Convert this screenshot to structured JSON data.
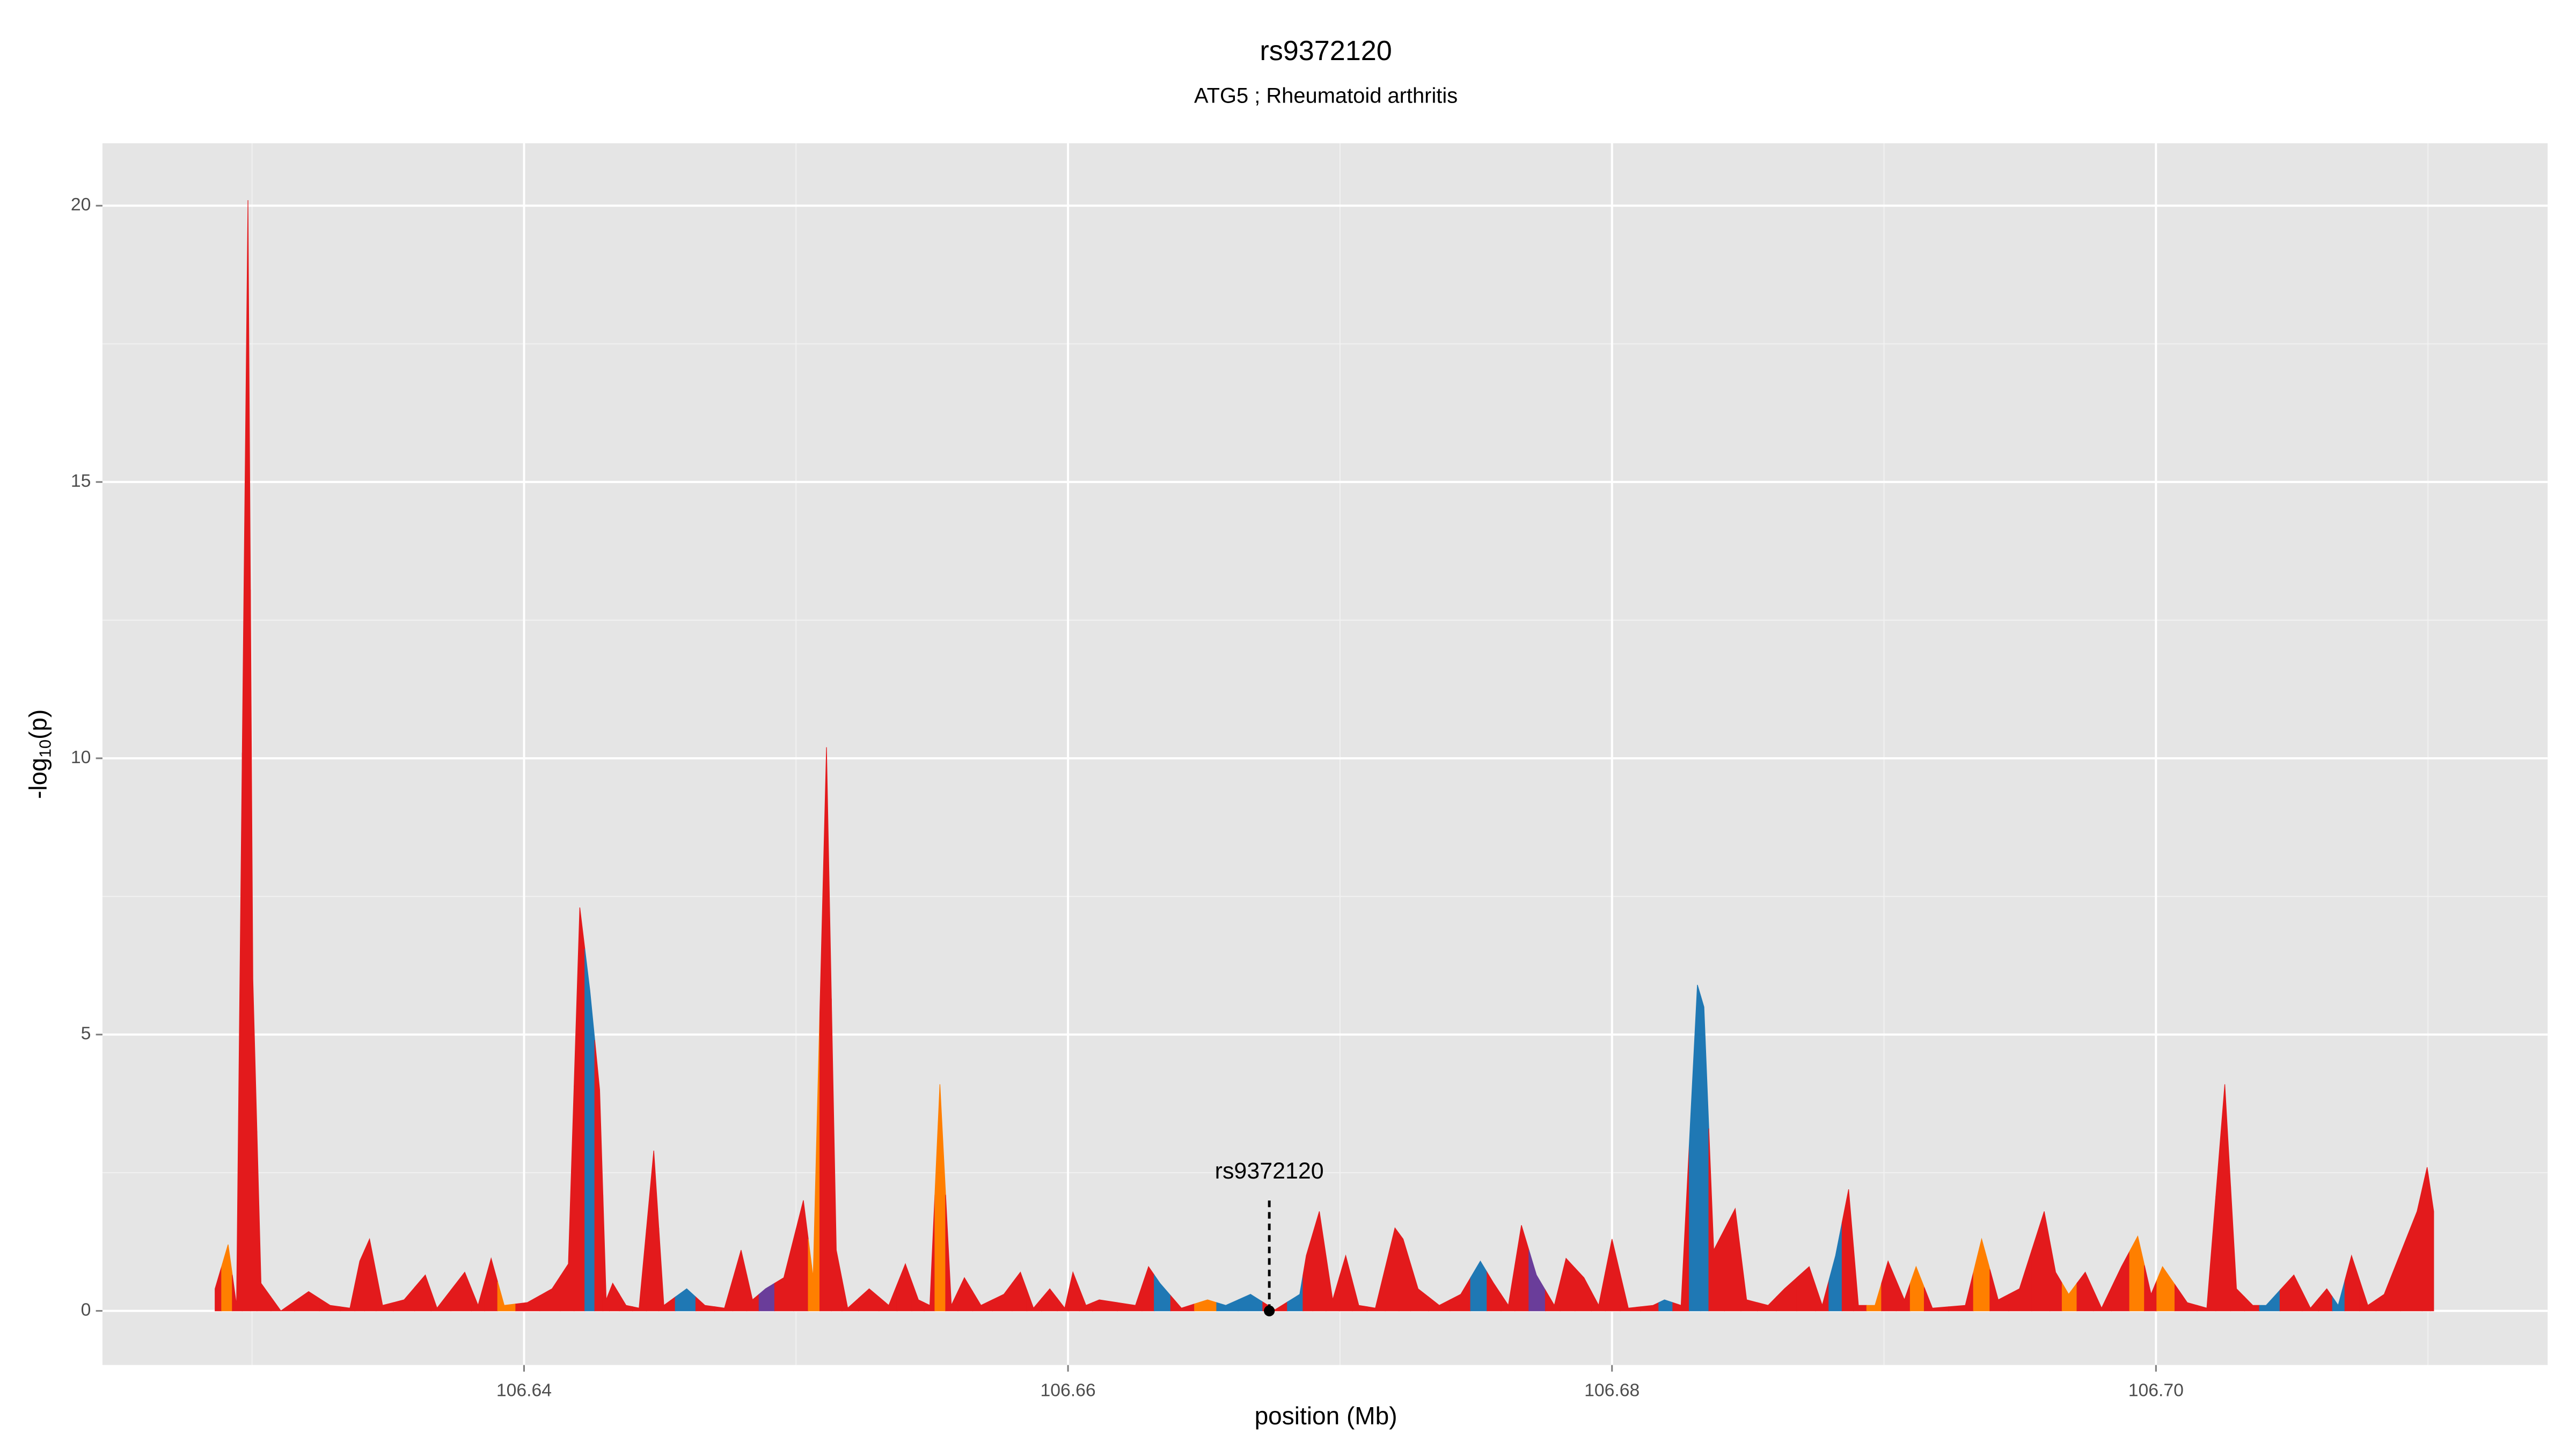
{
  "chart_data": {
    "type": "area",
    "title": "rs9372120",
    "subtitle": "ATG5 ; Rheumatoid arthritis",
    "xlabel": "position (Mb)",
    "ylabel": {
      "text": "-log",
      "subscript": "10",
      "suffix": "(p)"
    },
    "xlim": [
      106.6245,
      106.7144
    ],
    "ylim": [
      -0.98,
      21.13
    ],
    "xticks": [
      106.64,
      106.66,
      106.68,
      {
        "value": 106.7,
        "label": "106.70"
      }
    ],
    "yticks": [
      0,
      5,
      10,
      15,
      20
    ],
    "grid": true,
    "annotation": {
      "label": "rs9372120",
      "x": 106.6674,
      "y": 0
    },
    "x": [
      106.62864,
      106.62912,
      106.62943,
      106.62985,
      106.63003,
      106.63033,
      106.63106,
      106.63208,
      106.63287,
      106.6336,
      106.63396,
      106.63432,
      106.6348,
      106.63559,
      106.63637,
      106.6368,
      106.63782,
      106.63831,
      106.63879,
      106.63927,
      106.64012,
      106.64103,
      106.64163,
      106.64205,
      106.64242,
      106.64278,
      106.64302,
      106.64326,
      106.64375,
      106.64423,
      106.64477,
      106.64514,
      106.64598,
      106.64665,
      106.64737,
      106.64798,
      106.6484,
      106.64888,
      106.64955,
      106.65027,
      106.65063,
      106.65112,
      106.65148,
      106.6519,
      106.65269,
      106.65341,
      106.65402,
      106.6545,
      106.65492,
      106.65529,
      106.65571,
      106.65619,
      106.6568,
      106.65764,
      106.65825,
      106.65873,
      106.65933,
      106.65988,
      106.66018,
      106.66066,
      106.66115,
      106.66248,
      106.66296,
      106.66338,
      106.66417,
      106.66513,
      106.6658,
      106.66671,
      106.66761,
      106.66852,
      106.66876,
      106.66924,
      106.66973,
      106.67021,
      106.67069,
      106.6713,
      106.67202,
      106.67232,
      106.67287,
      106.67365,
      106.67444,
      106.67516,
      106.67565,
      106.67619,
      106.67667,
      106.67722,
      106.67788,
      106.67831,
      106.67897,
      106.67951,
      106.68,
      106.6806,
      106.68151,
      106.68193,
      106.68254,
      106.68314,
      106.68338,
      106.68374,
      106.68453,
      106.68495,
      106.68574,
      106.68634,
      106.68725,
      106.68773,
      106.68822,
      106.6887,
      106.68906,
      106.68967,
      106.69015,
      106.69075,
      106.69118,
      106.69178,
      106.69299,
      106.69359,
      106.6942,
      106.69498,
      106.69589,
      106.69631,
      106.69679,
      106.6974,
      106.698,
      106.69873,
      106.69933,
      106.69982,
      106.70024,
      106.70115,
      106.70187,
      106.70253,
      106.70296,
      106.70356,
      106.70405,
      106.70507,
      106.70568,
      106.70628,
      106.7067,
      106.70719,
      106.70779,
      106.70839,
      106.7096,
      106.70997,
      106.71021
    ],
    "values": [
      0.4,
      1.2,
      0.1,
      20.1,
      6,
      0.5,
      0,
      0.35,
      0.1,
      0.05,
      0.9,
      1.3,
      0.1,
      0.2,
      0.65,
      0.05,
      0.7,
      0.1,
      0.95,
      0.1,
      0.15,
      0.4,
      0.85,
      7.3,
      5.8,
      4,
      0.2,
      0.5,
      0.1,
      0.05,
      2.9,
      0.1,
      0.4,
      0.1,
      0.05,
      1.1,
      0.2,
      0.4,
      0.6,
      2,
      0.6,
      10.2,
      1.1,
      0.05,
      0.4,
      0.1,
      0.85,
      0.2,
      0.1,
      4.1,
      0.1,
      0.6,
      0.1,
      0.3,
      0.7,
      0.05,
      0.4,
      0.05,
      0.7,
      0.1,
      0.2,
      0.1,
      0.8,
      0.5,
      0.05,
      0.2,
      0.1,
      0.3,
      0.02,
      0.3,
      1,
      1.8,
      0.2,
      1,
      0.1,
      0.05,
      1.5,
      1.3,
      0.4,
      0.1,
      0.3,
      0.9,
      0.5,
      0.1,
      1.55,
      0.65,
      0.1,
      0.95,
      0.6,
      0.1,
      1.3,
      0.05,
      0.1,
      0.2,
      0.1,
      5.9,
      5.5,
      1.1,
      1.85,
      0.2,
      0.1,
      0.4,
      0.8,
      0.1,
      1,
      2.2,
      0.1,
      0.1,
      0.9,
      0.2,
      0.8,
      0.05,
      0.1,
      1.3,
      0.2,
      0.4,
      1.8,
      0.7,
      0.3,
      0.7,
      0.05,
      0.8,
      1.35,
      0.3,
      0.8,
      0.15,
      0.05,
      4.1,
      0.4,
      0.1,
      0.1,
      0.65,
      0.05,
      0.4,
      0.1,
      1,
      0.1,
      0.3,
      1.8,
      2.6,
      1.8
    ],
    "colors": [
      "#e31a1c",
      "#ff7f00",
      "#e31a1c",
      "#e31a1c",
      "#e31a1c",
      "#e31a1c",
      "#e31a1c",
      "#e31a1c",
      "#e31a1c",
      "#e31a1c",
      "#e31a1c",
      "#e31a1c",
      "#e31a1c",
      "#e31a1c",
      "#e31a1c",
      "#e31a1c",
      "#e31a1c",
      "#e31a1c",
      "#e31a1c",
      "#ff7f00",
      "#e31a1c",
      "#e31a1c",
      "#e31a1c",
      "#e31a1c",
      "#1f78b4",
      "#e31a1c",
      "#e31a1c",
      "#e31a1c",
      "#e31a1c",
      "#e31a1c",
      "#e31a1c",
      "#e31a1c",
      "#1f78b4",
      "#e31a1c",
      "#e31a1c",
      "#e31a1c",
      "#e31a1c",
      "#6a3d9a",
      "#e31a1c",
      "#e31a1c",
      "#ff7f00",
      "#e31a1c",
      "#e31a1c",
      "#e31a1c",
      "#e31a1c",
      "#e31a1c",
      "#e31a1c",
      "#e31a1c",
      "#e31a1c",
      "#ff7f00",
      "#e31a1c",
      "#e31a1c",
      "#e31a1c",
      "#e31a1c",
      "#e31a1c",
      "#e31a1c",
      "#e31a1c",
      "#e31a1c",
      "#e31a1c",
      "#e31a1c",
      "#e31a1c",
      "#e31a1c",
      "#e31a1c",
      "#1f78b4",
      "#e31a1c",
      "#ff7f00",
      "#1f78b4",
      "#1f78b4",
      "#e31a1c",
      "#1f78b4",
      "#e31a1c",
      "#e31a1c",
      "#e31a1c",
      "#e31a1c",
      "#e31a1c",
      "#e31a1c",
      "#e31a1c",
      "#e31a1c",
      "#e31a1c",
      "#e31a1c",
      "#e31a1c",
      "#1f78b4",
      "#e31a1c",
      "#e31a1c",
      "#e31a1c",
      "#6a3d9a",
      "#e31a1c",
      "#e31a1c",
      "#e31a1c",
      "#e31a1c",
      "#e31a1c",
      "#e31a1c",
      "#e31a1c",
      "#1f78b4",
      "#e31a1c",
      "#1f78b4",
      "#1f78b4",
      "#e31a1c",
      "#e31a1c",
      "#e31a1c",
      "#e31a1c",
      "#e31a1c",
      "#e31a1c",
      "#e31a1c",
      "#1f78b4",
      "#e31a1c",
      "#e31a1c",
      "#ff7f00",
      "#e31a1c",
      "#e31a1c",
      "#ff7f00",
      "#e31a1c",
      "#e31a1c",
      "#ff7f00",
      "#e31a1c",
      "#e31a1c",
      "#e31a1c",
      "#e31a1c",
      "#ff7f00",
      "#e31a1c",
      "#e31a1c",
      "#e31a1c",
      "#ff7f00",
      "#e31a1c",
      "#ff7f00",
      "#e31a1c",
      "#e31a1c",
      "#e31a1c",
      "#e31a1c",
      "#e31a1c",
      "#1f78b4",
      "#e31a1c",
      "#e31a1c",
      "#e31a1c",
      "#1f78b4",
      "#e31a1c",
      "#e31a1c",
      "#e31a1c",
      "#e31a1c",
      "#e31a1c",
      "#e31a1c"
    ]
  }
}
